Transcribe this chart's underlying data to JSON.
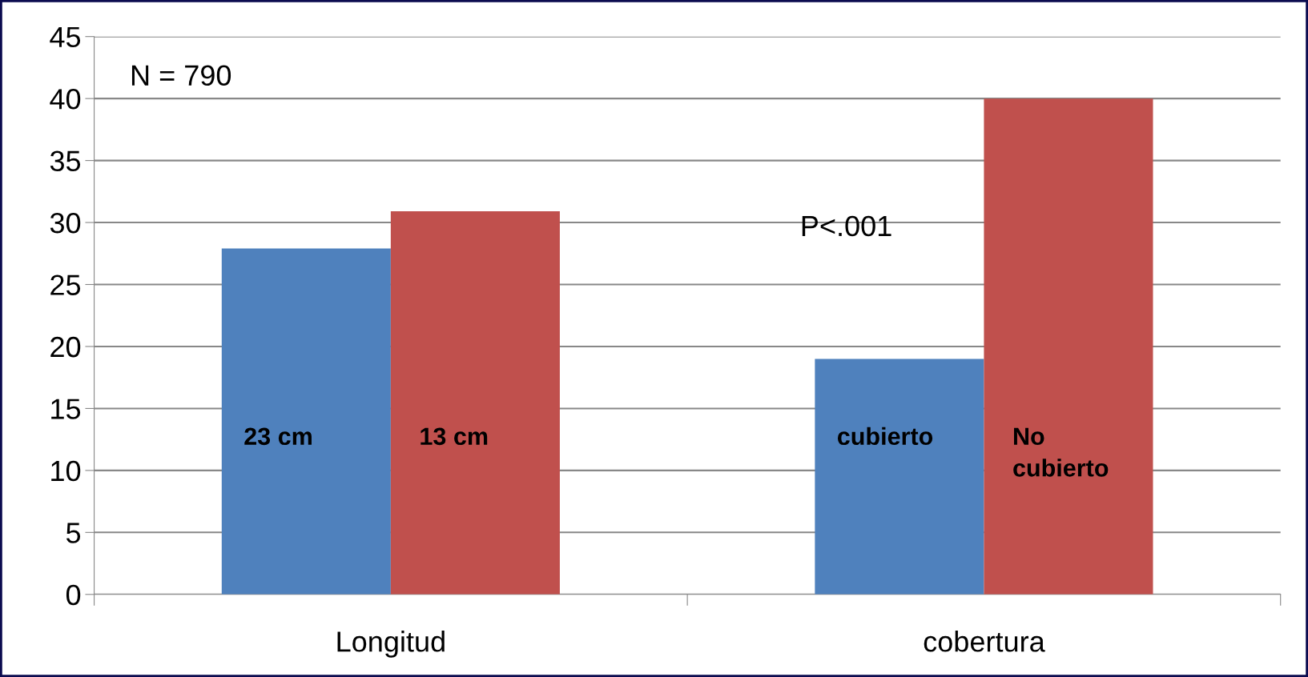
{
  "chart_data": {
    "type": "bar",
    "categories": [
      "Longitud",
      "cobertura"
    ],
    "series": [
      {
        "color": "#4f81bd",
        "values": [
          27.9,
          19.0
        ]
      },
      {
        "color": "#c0504d",
        "values": [
          30.9,
          40.0
        ]
      }
    ],
    "ylim": [
      0,
      45
    ],
    "yticks": [
      0,
      5,
      10,
      15,
      20,
      25,
      30,
      35,
      40,
      45
    ],
    "grid": "y",
    "legend": false,
    "annotations": [
      "N = 790",
      "P<.001",
      "23 cm",
      "13 cm",
      "cubierto",
      "No\ncubierto"
    ]
  }
}
